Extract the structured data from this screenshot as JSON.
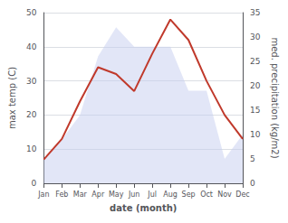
{
  "chart_data": {
    "type": "line",
    "xlabel": "date (month)",
    "ylabel": "max temp (C)",
    "y2label": "med. precipitation (kg/m2)",
    "categories": [
      "Jan",
      "Feb",
      "Mar",
      "Apr",
      "May",
      "Jun",
      "Jul",
      "Aug",
      "Sep",
      "Oct",
      "Nov",
      "Dec"
    ],
    "series": [
      {
        "type": "area",
        "axis": "y2",
        "color": "#c5cef0",
        "values": [
          5,
          9,
          14,
          26,
          32,
          28,
          28,
          28,
          19,
          19,
          5,
          10
        ]
      },
      {
        "type": "line",
        "color": "#c0392b",
        "values": [
          7,
          13,
          24,
          34,
          32,
          27,
          38,
          48,
          42,
          30,
          20,
          13
        ]
      }
    ],
    "ylim": [
      0,
      50
    ],
    "yticks": [
      0,
      10,
      20,
      30,
      40,
      50
    ],
    "y2lim": [
      0,
      35
    ],
    "y2ticks": [
      0,
      5,
      10,
      15,
      20,
      25,
      30,
      35
    ],
    "grid": true
  }
}
